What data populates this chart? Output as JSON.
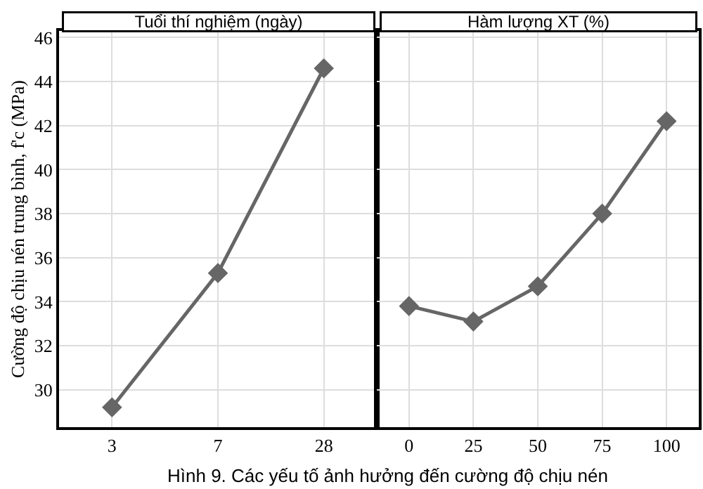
{
  "chart_data": [
    {
      "type": "line",
      "title": "Tuổi thí nghiệm (ngày)",
      "ylabel": "Cường độ chịu nén trung bình, f'c (MPa)",
      "categories": [
        "3",
        "7",
        "28"
      ],
      "series": [
        {
          "color": "#666666",
          "values": [
            29.2,
            35.3,
            44.6
          ]
        }
      ],
      "ylim": [
        28.3,
        46.3
      ],
      "yticks": [
        30,
        32,
        34,
        36,
        38,
        40,
        42,
        44,
        46
      ],
      "grid": true,
      "marker": "diamond",
      "line_style": "solid",
      "annotations": [
        "Hình 9. Các yếu tố ảnh hưởng đến cường độ chịu nén"
      ]
    },
    {
      "type": "line",
      "title": "Hàm lượng XT (%)",
      "categories": [
        "0",
        "25",
        "50",
        "75",
        "100"
      ],
      "series": [
        {
          "color": "#666666",
          "values": [
            33.8,
            33.1,
            34.7,
            38.0,
            42.2
          ]
        }
      ],
      "ylim": [
        28.3,
        46.3
      ],
      "yticks": [
        30,
        32,
        34,
        36,
        38,
        40,
        42,
        44,
        46
      ],
      "grid": true,
      "marker": "diamond",
      "line_style": "solid",
      "tick_labels": "x"
    }
  ]
}
